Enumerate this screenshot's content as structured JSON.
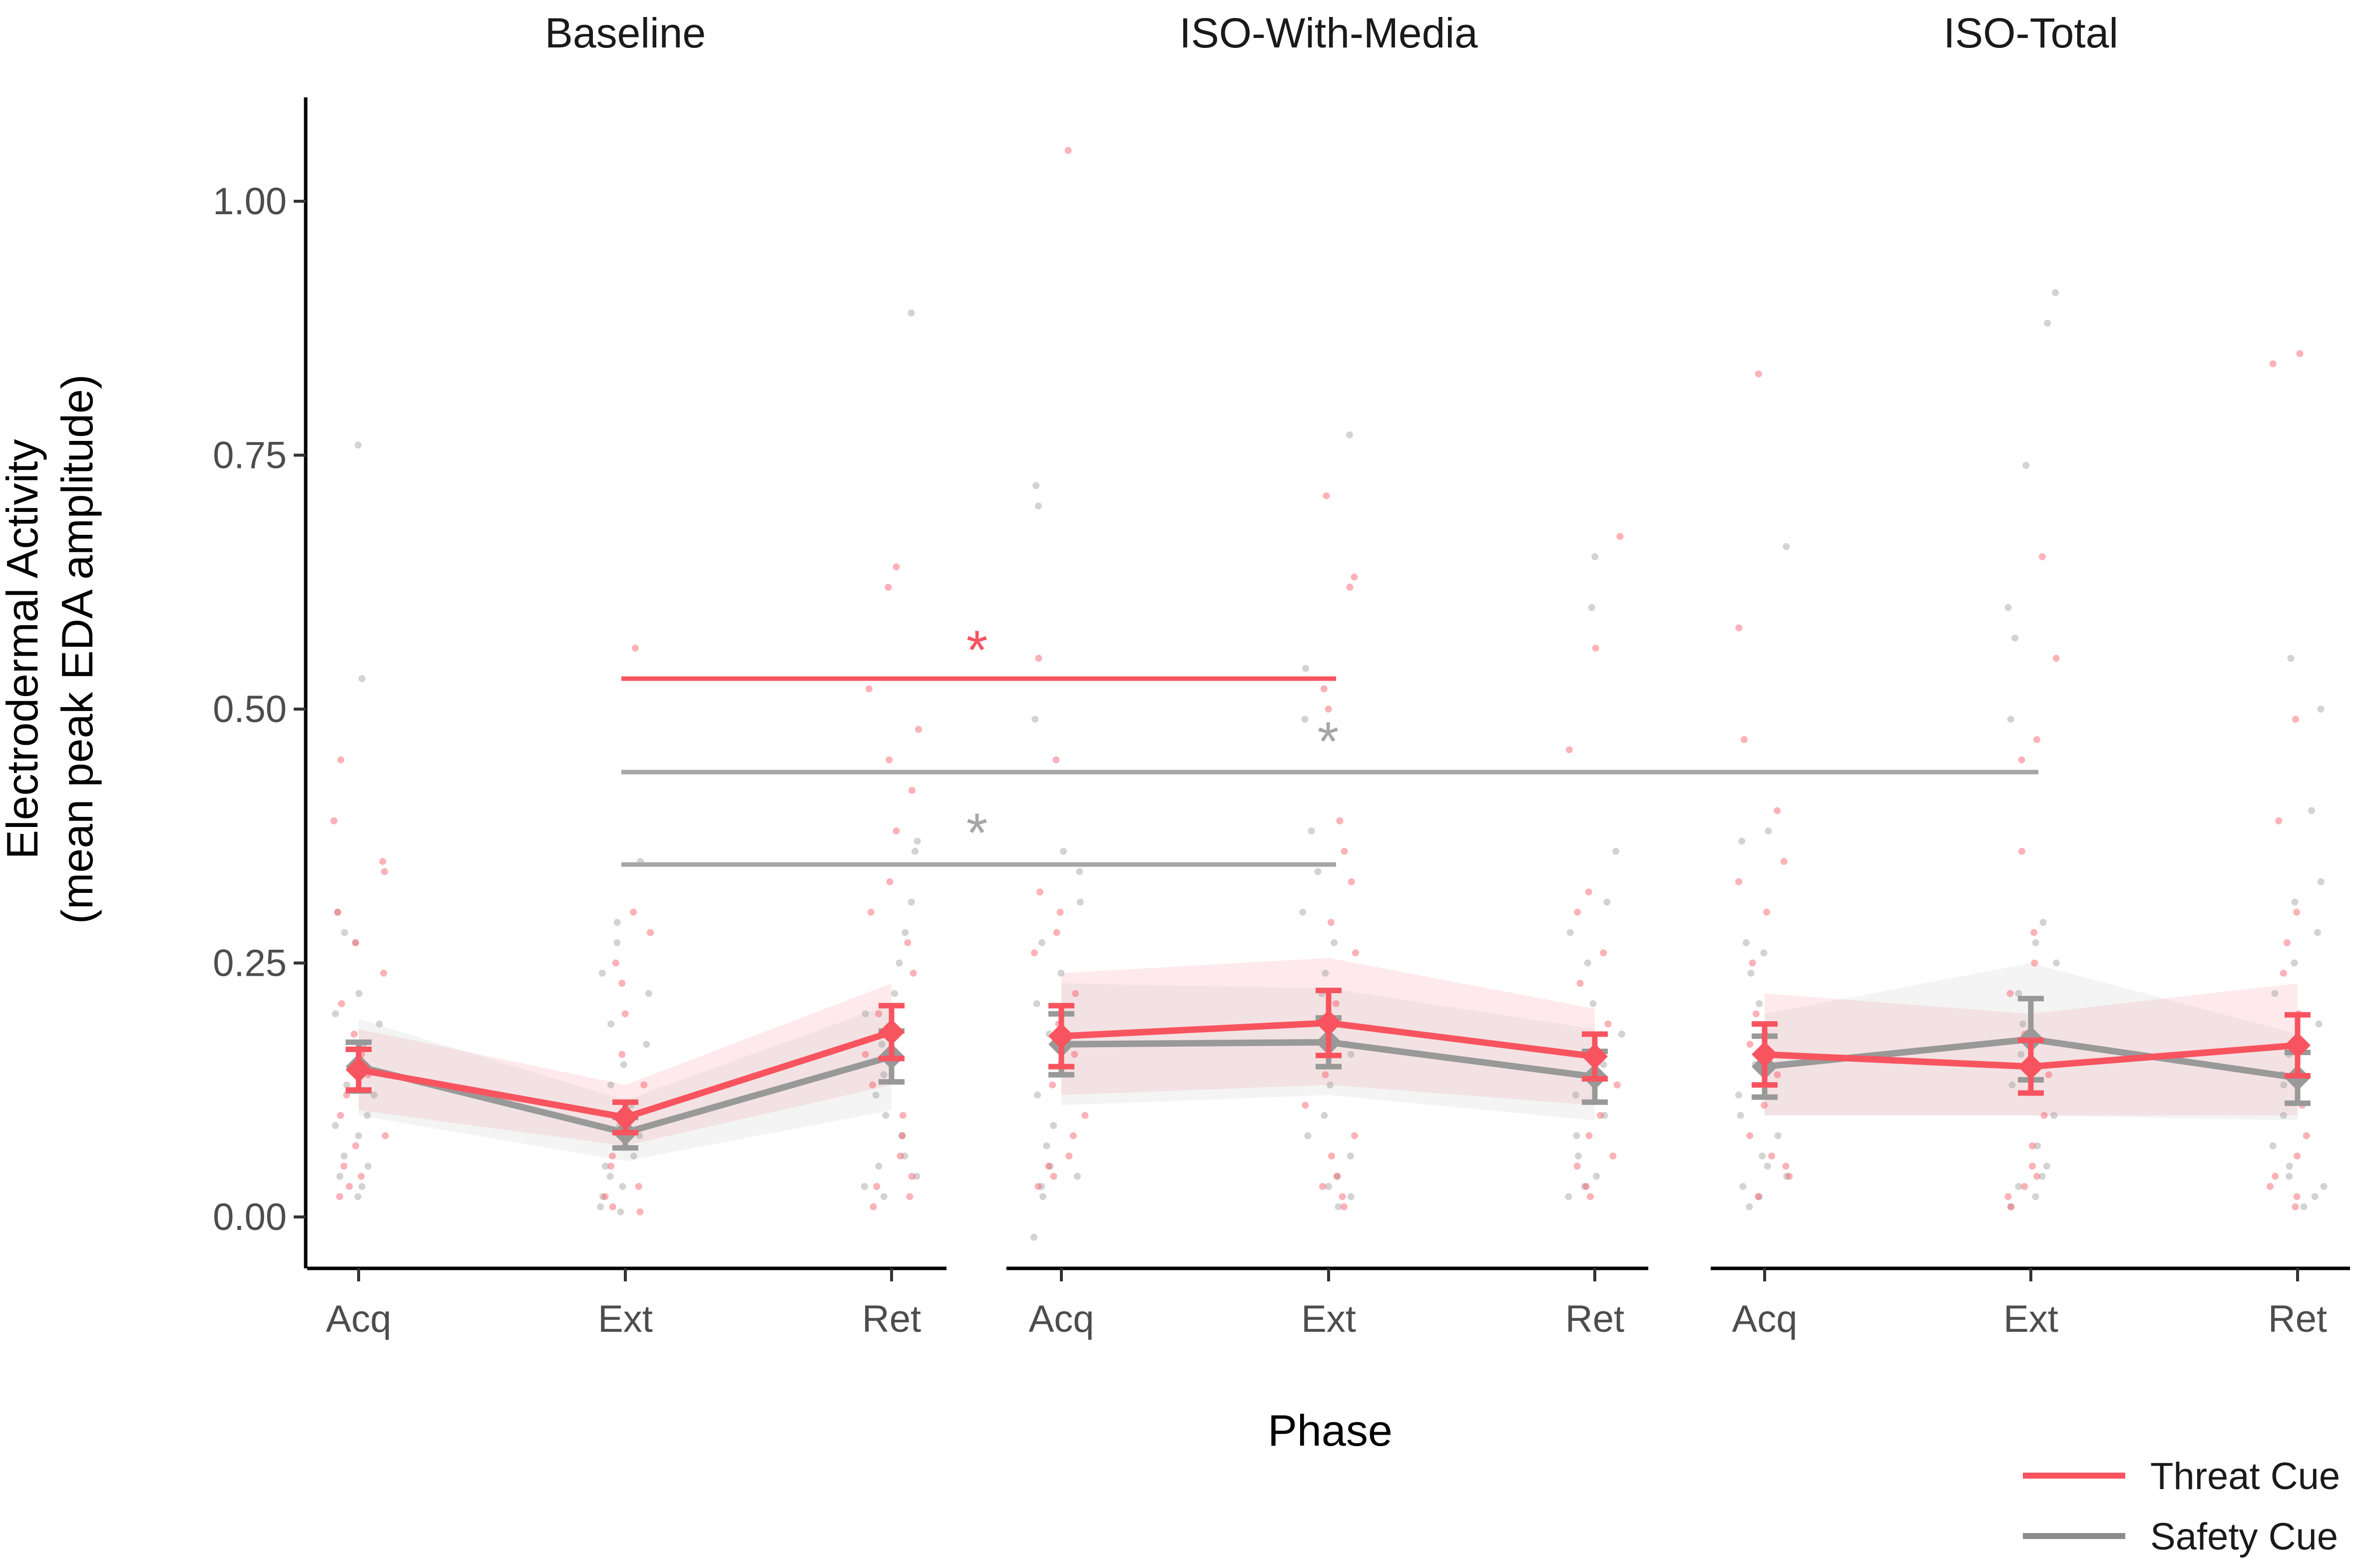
{
  "chart_data": {
    "type": "line",
    "panels": [
      "Baseline",
      "ISO-With-Media",
      "ISO-Total"
    ],
    "categories": [
      "Acq",
      "Ext",
      "Ret"
    ],
    "xlabel": "Phase",
    "ylabel_line1": "Electrodermal Activity",
    "ylabel_line2": "(mean peak EDA amplitude)",
    "ylim": [
      -0.05,
      1.1
    ],
    "yticks": [
      0.0,
      0.25,
      0.5,
      0.75,
      1.0
    ],
    "ytick_labels": [
      "0.00",
      "0.25",
      "0.50",
      "0.75",
      "1.00"
    ],
    "series": [
      {
        "name": "Threat Cue",
        "color": "#f8545f",
        "panels": [
          {
            "mean": [
              0.145,
              0.098,
              0.182
            ],
            "se": [
              0.02,
              0.015,
              0.026
            ],
            "band_lo": [
              0.105,
              0.07,
              0.13
            ],
            "band_hi": [
              0.185,
              0.13,
              0.23
            ]
          },
          {
            "mean": [
              0.178,
              0.191,
              0.158
            ],
            "se": [
              0.03,
              0.032,
              0.022
            ],
            "band_lo": [
              0.12,
              0.13,
              0.11
            ],
            "band_hi": [
              0.24,
              0.255,
              0.205
            ]
          },
          {
            "mean": [
              0.16,
              0.148,
              0.169
            ],
            "se": [
              0.03,
              0.026,
              0.03
            ],
            "band_lo": [
              0.1,
              0.1,
              0.1
            ],
            "band_hi": [
              0.22,
              0.2,
              0.23
            ]
          }
        ]
      },
      {
        "name": "Safety Cue",
        "color": "#999999",
        "panels": [
          {
            "mean": [
              0.148,
              0.083,
              0.158
            ],
            "se": [
              0.024,
              0.015,
              0.025
            ],
            "band_lo": [
              0.1,
              0.055,
              0.105
            ],
            "band_hi": [
              0.195,
              0.115,
              0.21
            ]
          },
          {
            "mean": [
              0.17,
              0.172,
              0.138
            ],
            "se": [
              0.03,
              0.024,
              0.025
            ],
            "band_lo": [
              0.11,
              0.12,
              0.095
            ],
            "band_hi": [
              0.23,
              0.225,
              0.185
            ]
          },
          {
            "mean": [
              0.148,
              0.175,
              0.137
            ],
            "se": [
              0.03,
              0.04,
              0.025
            ],
            "band_lo": [
              0.1,
              0.1,
              0.095
            ],
            "band_hi": [
              0.2,
              0.25,
              0.18
            ]
          }
        ]
      }
    ],
    "significance": [
      {
        "from_panel": 0,
        "from_cat": 1,
        "to_panel": 1,
        "to_cat": 1,
        "y": 0.53,
        "series": "Threat Cue",
        "label": "*",
        "label_y": 0.57
      },
      {
        "from_panel": 0,
        "from_cat": 1,
        "to_panel": 2,
        "to_cat": 1,
        "y": 0.438,
        "series": "Safety Cue",
        "label": "*",
        "label_y": 0.48
      },
      {
        "from_panel": 0,
        "from_cat": 1,
        "to_panel": 1,
        "to_cat": 1,
        "y": 0.347,
        "series": "Safety Cue",
        "label": "*",
        "label_y": 0.39
      }
    ],
    "jitter_points": [
      {
        "panel": 0,
        "cat": 0,
        "series": "Safety Cue",
        "y": [
          0.76,
          0.53,
          0.3,
          0.28,
          0.27,
          0.22,
          0.2,
          0.19,
          0.17,
          0.15,
          0.13,
          0.12,
          0.1,
          0.09,
          0.08,
          0.06,
          0.05,
          0.04,
          0.03,
          0.02
        ]
      },
      {
        "panel": 0,
        "cat": 0,
        "series": "Threat Cue",
        "y": [
          0.45,
          0.39,
          0.35,
          0.34,
          0.3,
          0.27,
          0.24,
          0.21,
          0.18,
          0.16,
          0.14,
          0.12,
          0.1,
          0.08,
          0.07,
          0.05,
          0.04,
          0.03,
          0.02
        ]
      },
      {
        "panel": 0,
        "cat": 1,
        "series": "Safety Cue",
        "y": [
          0.35,
          0.29,
          0.27,
          0.24,
          0.22,
          0.19,
          0.17,
          0.15,
          0.13,
          0.11,
          0.09,
          0.08,
          0.06,
          0.05,
          0.04,
          0.03,
          0.02,
          0.01,
          0.005
        ]
      },
      {
        "panel": 0,
        "cat": 1,
        "series": "Threat Cue",
        "y": [
          0.56,
          0.3,
          0.28,
          0.25,
          0.23,
          0.2,
          0.16,
          0.13,
          0.1,
          0.08,
          0.06,
          0.05,
          0.03,
          0.02,
          0.01,
          0.005
        ]
      },
      {
        "panel": 0,
        "cat": 2,
        "series": "Safety Cue",
        "y": [
          0.89,
          0.37,
          0.36,
          0.31,
          0.28,
          0.25,
          0.22,
          0.2,
          0.17,
          0.14,
          0.12,
          0.1,
          0.08,
          0.06,
          0.05,
          0.04,
          0.03,
          0.02
        ]
      },
      {
        "panel": 0,
        "cat": 2,
        "series": "Threat Cue",
        "y": [
          0.64,
          0.62,
          0.52,
          0.48,
          0.45,
          0.42,
          0.38,
          0.33,
          0.3,
          0.27,
          0.24,
          0.2,
          0.16,
          0.13,
          0.1,
          0.08,
          0.06,
          0.04,
          0.03,
          0.02,
          0.01
        ]
      },
      {
        "panel": 1,
        "cat": 0,
        "series": "Safety Cue",
        "y": [
          0.72,
          0.7,
          0.49,
          0.36,
          0.34,
          0.31,
          0.27,
          0.24,
          0.21,
          0.18,
          0.15,
          0.12,
          0.09,
          0.07,
          0.05,
          0.04,
          0.03,
          0.02,
          -0.02
        ]
      },
      {
        "panel": 1,
        "cat": 0,
        "series": "Threat Cue",
        "y": [
          1.05,
          0.55,
          0.45,
          0.32,
          0.3,
          0.28,
          0.26,
          0.22,
          0.19,
          0.16,
          0.13,
          0.1,
          0.08,
          0.06,
          0.05,
          0.04,
          0.03
        ]
      },
      {
        "panel": 1,
        "cat": 1,
        "series": "Safety Cue",
        "y": [
          0.77,
          0.54,
          0.49,
          0.38,
          0.34,
          0.3,
          0.27,
          0.24,
          0.22,
          0.19,
          0.16,
          0.13,
          0.1,
          0.08,
          0.06,
          0.04,
          0.03,
          0.02,
          0.01
        ]
      },
      {
        "panel": 1,
        "cat": 1,
        "series": "Threat Cue",
        "y": [
          0.71,
          0.63,
          0.62,
          0.52,
          0.5,
          0.39,
          0.36,
          0.33,
          0.29,
          0.26,
          0.21,
          0.17,
          0.14,
          0.11,
          0.08,
          0.06,
          0.04,
          0.03,
          0.02,
          0.01
        ]
      },
      {
        "panel": 1,
        "cat": 2,
        "series": "Safety Cue",
        "y": [
          0.65,
          0.6,
          0.36,
          0.31,
          0.28,
          0.25,
          0.21,
          0.18,
          0.15,
          0.12,
          0.1,
          0.08,
          0.06,
          0.04,
          0.03,
          0.02
        ]
      },
      {
        "panel": 1,
        "cat": 2,
        "series": "Threat Cue",
        "y": [
          0.67,
          0.56,
          0.46,
          0.32,
          0.3,
          0.26,
          0.23,
          0.19,
          0.16,
          0.13,
          0.1,
          0.08,
          0.06,
          0.05,
          0.03,
          0.02
        ]
      },
      {
        "panel": 2,
        "cat": 0,
        "series": "Safety Cue",
        "y": [
          0.66,
          0.38,
          0.37,
          0.27,
          0.26,
          0.24,
          0.21,
          0.18,
          0.15,
          0.12,
          0.1,
          0.08,
          0.06,
          0.05,
          0.04,
          0.03,
          0.02,
          0.01
        ]
      },
      {
        "panel": 2,
        "cat": 0,
        "series": "Threat Cue",
        "y": [
          0.83,
          0.58,
          0.47,
          0.4,
          0.35,
          0.33,
          0.3,
          0.25,
          0.2,
          0.17,
          0.14,
          0.11,
          0.08,
          0.06,
          0.05,
          0.04,
          0.02
        ]
      },
      {
        "panel": 2,
        "cat": 1,
        "series": "Safety Cue",
        "y": [
          0.91,
          0.88,
          0.74,
          0.6,
          0.57,
          0.49,
          0.29,
          0.27,
          0.25,
          0.22,
          0.19,
          0.16,
          0.13,
          0.1,
          0.07,
          0.05,
          0.04,
          0.03,
          0.02,
          0.01
        ]
      },
      {
        "panel": 2,
        "cat": 1,
        "series": "Threat Cue",
        "y": [
          0.65,
          0.55,
          0.47,
          0.45,
          0.36,
          0.28,
          0.25,
          0.22,
          0.18,
          0.14,
          0.1,
          0.07,
          0.05,
          0.04,
          0.03,
          0.02,
          0.01
        ]
      },
      {
        "panel": 2,
        "cat": 2,
        "series": "Safety Cue",
        "y": [
          0.55,
          0.5,
          0.4,
          0.33,
          0.31,
          0.28,
          0.25,
          0.22,
          0.19,
          0.16,
          0.13,
          0.1,
          0.07,
          0.05,
          0.04,
          0.03,
          0.02,
          0.01
        ]
      },
      {
        "panel": 2,
        "cat": 2,
        "series": "Threat Cue",
        "y": [
          0.85,
          0.84,
          0.49,
          0.39,
          0.3,
          0.27,
          0.24,
          0.2,
          0.17,
          0.14,
          0.11,
          0.08,
          0.06,
          0.04,
          0.03,
          0.02,
          0.01
        ]
      }
    ],
    "legend_position": "bottom-right"
  }
}
